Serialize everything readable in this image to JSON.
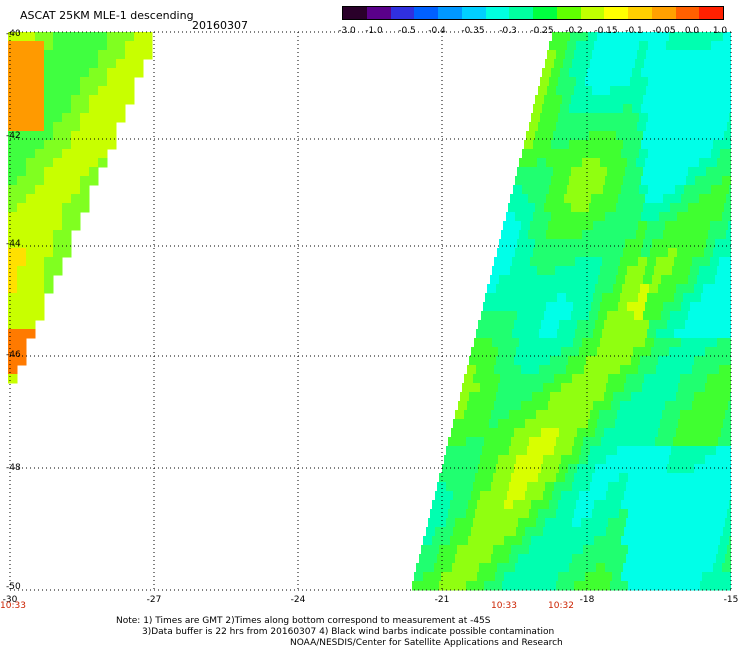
{
  "header": {
    "title": "ASCAT 25KM MLE-1 descending",
    "date": "20160307"
  },
  "colorbar": {
    "labels": [
      "-3.0",
      "-1.0",
      "-0.5",
      "-0.4",
      "-0.35",
      "-0.3",
      "-0.25",
      "-0.2",
      "-0.15",
      "-0.1",
      "-0.05",
      "0.0",
      "1.0"
    ],
    "colors": [
      "#2a002a",
      "#5a008a",
      "#3030e0",
      "#0060ff",
      "#0098ff",
      "#00d0ff",
      "#00ffe0",
      "#00ffa0",
      "#00ff40",
      "#60ff00",
      "#c0ff00",
      "#ffff00",
      "#ffd000",
      "#ffa000",
      "#ff6000",
      "#ff2000"
    ]
  },
  "map": {
    "lat_labels": [
      "-40",
      "-42",
      "-44",
      "-46",
      "-48",
      "-50"
    ],
    "lon_labels": [
      "-30",
      "-27",
      "-24",
      "-21",
      "-18",
      "-15"
    ],
    "time_labels": [
      "10:33",
      "10:33",
      "10:32"
    ],
    "time_color": "#cc2200"
  },
  "notes": {
    "line1": "Note: 1) Times are GMT 2)Times along bottom correspond to measurement at -45S",
    "line2": "3)Data buffer is 22 hrs from 20160307 4) Black wind barbs indicate possible contamination",
    "line3": "NOAA/NESDIS/Center for Satellite Applications and Research"
  }
}
